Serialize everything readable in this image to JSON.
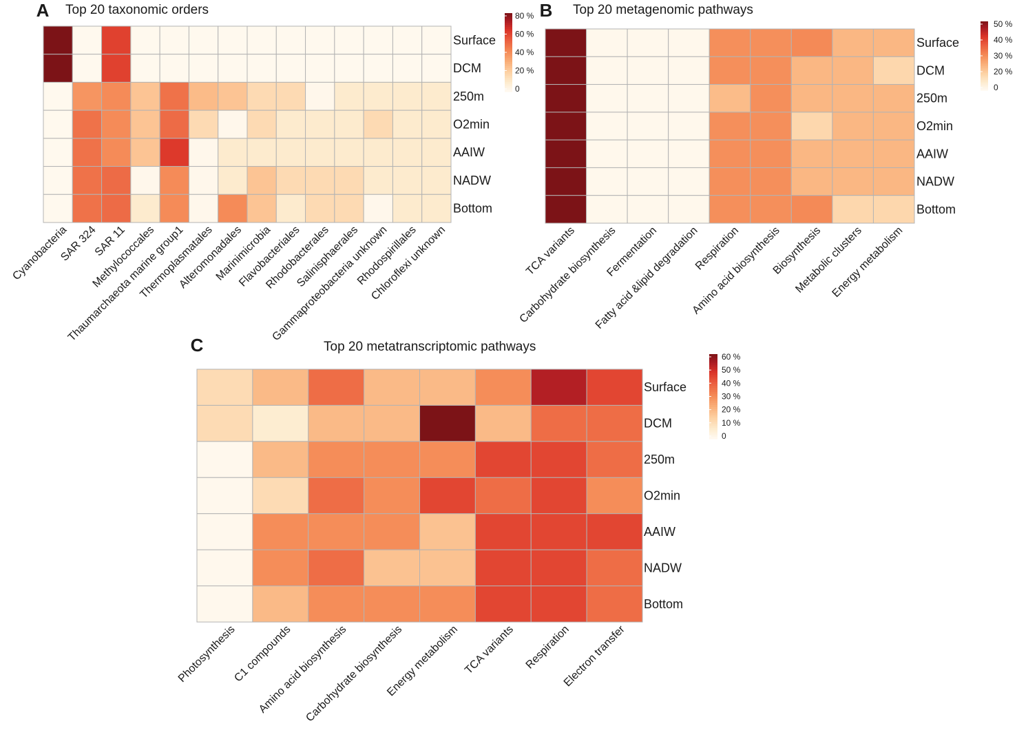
{
  "chart_data": [
    {
      "type": "heatmap",
      "panel": "A",
      "title": "Top 20 taxonomic orders",
      "rows": [
        "Surface",
        "DCM",
        "250m",
        "O2min",
        "AAIW",
        "NADW",
        "Bottom"
      ],
      "columns": [
        "Cyanobacteria",
        "SAR 324",
        "SAR 11",
        "Methylococcales",
        "Thaumarchaeota marine group1",
        "Thermoplasmatales",
        "Alteromonadales",
        "Marinimicrobia",
        "Flavobacteriales",
        "Rhodobacterales",
        "Salinisphaerales",
        "Gammaproteobacteria unknown",
        "Rhodospirillales",
        "Chloroflexi unknown"
      ],
      "values": [
        [
          85,
          1,
          63,
          1,
          1,
          1,
          1,
          1,
          1,
          1,
          1,
          1,
          1,
          1
        ],
        [
          85,
          1,
          63,
          1,
          1,
          1,
          1,
          1,
          1,
          1,
          1,
          1,
          1,
          1
        ],
        [
          1,
          40,
          43,
          25,
          50,
          28,
          25,
          17,
          17,
          2,
          10,
          10,
          10,
          10
        ],
        [
          1,
          50,
          43,
          25,
          52,
          17,
          2,
          17,
          10,
          10,
          10,
          17,
          10,
          10
        ],
        [
          1,
          50,
          43,
          25,
          65,
          2,
          10,
          10,
          10,
          10,
          10,
          10,
          10,
          10
        ],
        [
          1,
          50,
          52,
          2,
          43,
          2,
          10,
          25,
          17,
          17,
          17,
          10,
          10,
          10
        ],
        [
          1,
          50,
          52,
          10,
          43,
          2,
          43,
          25,
          10,
          17,
          17,
          2,
          10,
          10
        ]
      ],
      "legend": {
        "ticks": [
          "80 %",
          "60 %",
          "40 %",
          "20 %",
          "0"
        ],
        "max": 85
      }
    },
    {
      "type": "heatmap",
      "panel": "B",
      "title": "Top 20 metagenomic pathways",
      "rows": [
        "Surface",
        "DCM",
        "250m",
        "O2min",
        "AAIW",
        "NADW",
        "Bottom"
      ],
      "columns": [
        "TCA variants",
        "Carbohydrate biosynthesis",
        "Fermentation",
        "Fatty acid &lipid degradation",
        "Respiration",
        "Amino acid biosynthesis",
        "Biosynthesis",
        "Metabolic clusters",
        "Energy metabolism"
      ],
      "values": [
        [
          55,
          1,
          1,
          1,
          27,
          27,
          28,
          19,
          19
        ],
        [
          55,
          1,
          1,
          1,
          27,
          27,
          19,
          19,
          12
        ],
        [
          55,
          1,
          1,
          1,
          18,
          27,
          19,
          19,
          19
        ],
        [
          55,
          1,
          1,
          1,
          27,
          27,
          12,
          19,
          19
        ],
        [
          55,
          1,
          1,
          1,
          27,
          27,
          19,
          19,
          19
        ],
        [
          55,
          1,
          1,
          1,
          27,
          27,
          19,
          19,
          19
        ],
        [
          55,
          1,
          1,
          1,
          27,
          27,
          28,
          12,
          12
        ]
      ],
      "legend": {
        "ticks": [
          "50 %",
          "40 %",
          "30 %",
          "20 %",
          "0"
        ],
        "max": 55
      }
    },
    {
      "type": "heatmap",
      "panel": "C",
      "title": "Top 20 metatranscriptomic pathways",
      "rows": [
        "Surface",
        "DCM",
        "250m",
        "O2min",
        "AAIW",
        "NADW",
        "Bottom"
      ],
      "columns": [
        "Photosynthesis",
        "C1 compounds",
        "Amino acid biosynthesis",
        "Carbohydrate biosynthesis",
        "Energy metabolism",
        "TCA variants",
        "Respiration",
        "Electron transfer"
      ],
      "values": [
        [
          13,
          22,
          40,
          22,
          22,
          33,
          58,
          48
        ],
        [
          13,
          7,
          22,
          22,
          66,
          22,
          40,
          40
        ],
        [
          1,
          22,
          33,
          33,
          33,
          48,
          48,
          40
        ],
        [
          1,
          13,
          40,
          33,
          48,
          40,
          48,
          33
        ],
        [
          1,
          33,
          33,
          33,
          20,
          48,
          48,
          48
        ],
        [
          1,
          33,
          40,
          20,
          20,
          48,
          48,
          40
        ],
        [
          1,
          22,
          33,
          33,
          33,
          48,
          48,
          40
        ]
      ],
      "legend": {
        "ticks": [
          "60 %",
          "50 %",
          "40 %",
          "30 %",
          "20 %",
          "10 %",
          "0"
        ],
        "max": 66
      }
    }
  ]
}
